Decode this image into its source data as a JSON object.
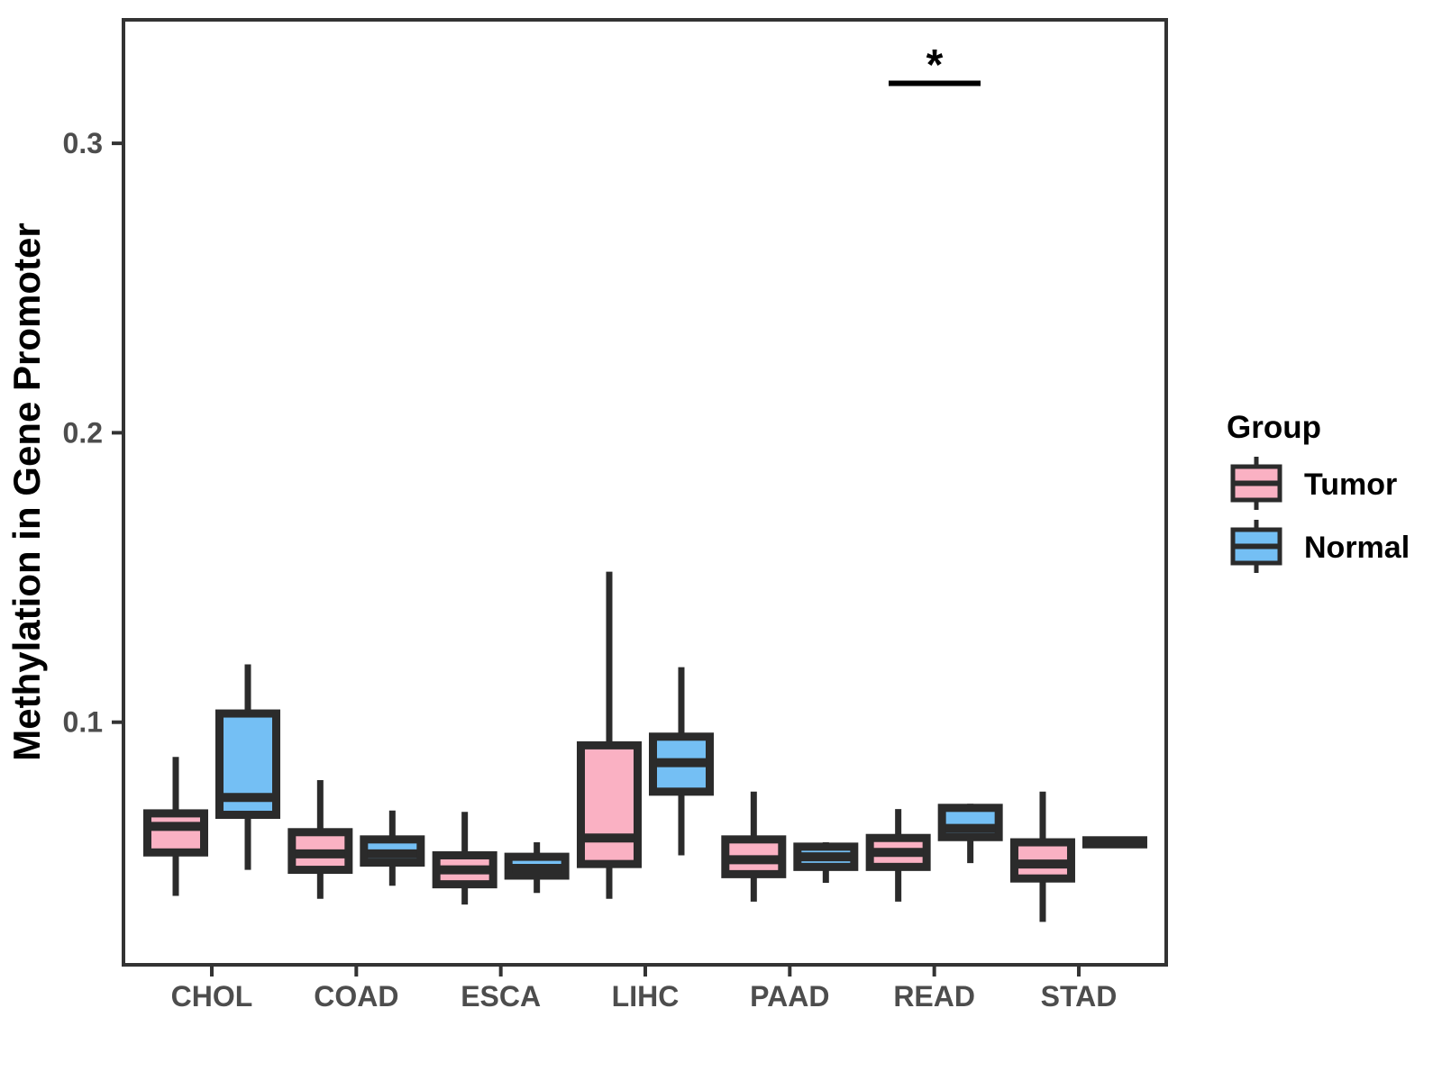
{
  "y_axis": {
    "title": "Methylation in Gene Promoter",
    "ticks": [
      {
        "label": "0.1",
        "value": 0.1
      },
      {
        "label": "0.2",
        "value": 0.2
      },
      {
        "label": "0.3",
        "value": 0.3
      }
    ]
  },
  "legend": {
    "title": "Group",
    "items": [
      {
        "label": "Tumor",
        "color": "#FAB1C3"
      },
      {
        "label": "Normal",
        "color": "#74BFF4"
      }
    ]
  },
  "significance": {
    "label": "*",
    "category": "READ",
    "between": [
      "Tumor",
      "Normal"
    ]
  },
  "colors": {
    "tumor_fill": "#FAB1C3",
    "normal_fill": "#74BFF4",
    "box_border": "#2B2B2B",
    "axis_line": "#333333",
    "axis_text": "#4D4D4D"
  },
  "chart_data": {
    "type": "boxplot",
    "title": "",
    "xlabel": "",
    "ylabel": "Methylation in Gene Promoter",
    "categories": [
      "CHOL",
      "COAD",
      "ESCA",
      "LIHC",
      "PAAD",
      "READ",
      "STAD"
    ],
    "ylim": [
      0.016,
      0.343
    ],
    "grid": false,
    "legend_position": "right",
    "series": [
      {
        "name": "Tumor",
        "color": "#FAB1C3",
        "boxes": [
          {
            "whisker_low": 0.04,
            "q1": 0.055,
            "median": 0.064,
            "q3": 0.0685,
            "whisker_high": 0.088
          },
          {
            "whisker_low": 0.039,
            "q1": 0.049,
            "median": 0.0545,
            "q3": 0.062,
            "whisker_high": 0.08
          },
          {
            "whisker_low": 0.037,
            "q1": 0.044,
            "median": 0.049,
            "q3": 0.054,
            "whisker_high": 0.069
          },
          {
            "whisker_low": 0.039,
            "q1": 0.051,
            "median": 0.06,
            "q3": 0.092,
            "whisker_high": 0.152
          },
          {
            "whisker_low": 0.038,
            "q1": 0.0475,
            "median": 0.0525,
            "q3": 0.0595,
            "whisker_high": 0.076
          },
          {
            "whisker_low": 0.038,
            "q1": 0.05,
            "median": 0.055,
            "q3": 0.06,
            "whisker_high": 0.07
          },
          {
            "whisker_low": 0.031,
            "q1": 0.046,
            "median": 0.051,
            "q3": 0.0585,
            "whisker_high": 0.076
          }
        ]
      },
      {
        "name": "Normal",
        "color": "#74BFF4",
        "boxes": [
          {
            "whisker_low": 0.049,
            "q1": 0.068,
            "median": 0.074,
            "q3": 0.103,
            "whisker_high": 0.12
          },
          {
            "whisker_low": 0.0435,
            "q1": 0.0515,
            "median": 0.0545,
            "q3": 0.0595,
            "whisker_high": 0.0695
          },
          {
            "whisker_low": 0.041,
            "q1": 0.047,
            "median": 0.0495,
            "q3": 0.0535,
            "whisker_high": 0.0585
          },
          {
            "whisker_low": 0.054,
            "q1": 0.076,
            "median": 0.086,
            "q3": 0.095,
            "whisker_high": 0.119
          },
          {
            "whisker_low": 0.0445,
            "q1": 0.05,
            "median": 0.0535,
            "q3": 0.057,
            "whisker_high": 0.0585
          },
          {
            "whisker_low": 0.0513,
            "q1": 0.0603,
            "median": 0.0633,
            "q3": 0.0704,
            "whisker_high": 0.0718
          },
          {
            "whisker_low": 0.0565,
            "q1": 0.0578,
            "median": 0.0585,
            "q3": 0.0592,
            "whisker_high": 0.0605
          }
        ]
      }
    ]
  }
}
